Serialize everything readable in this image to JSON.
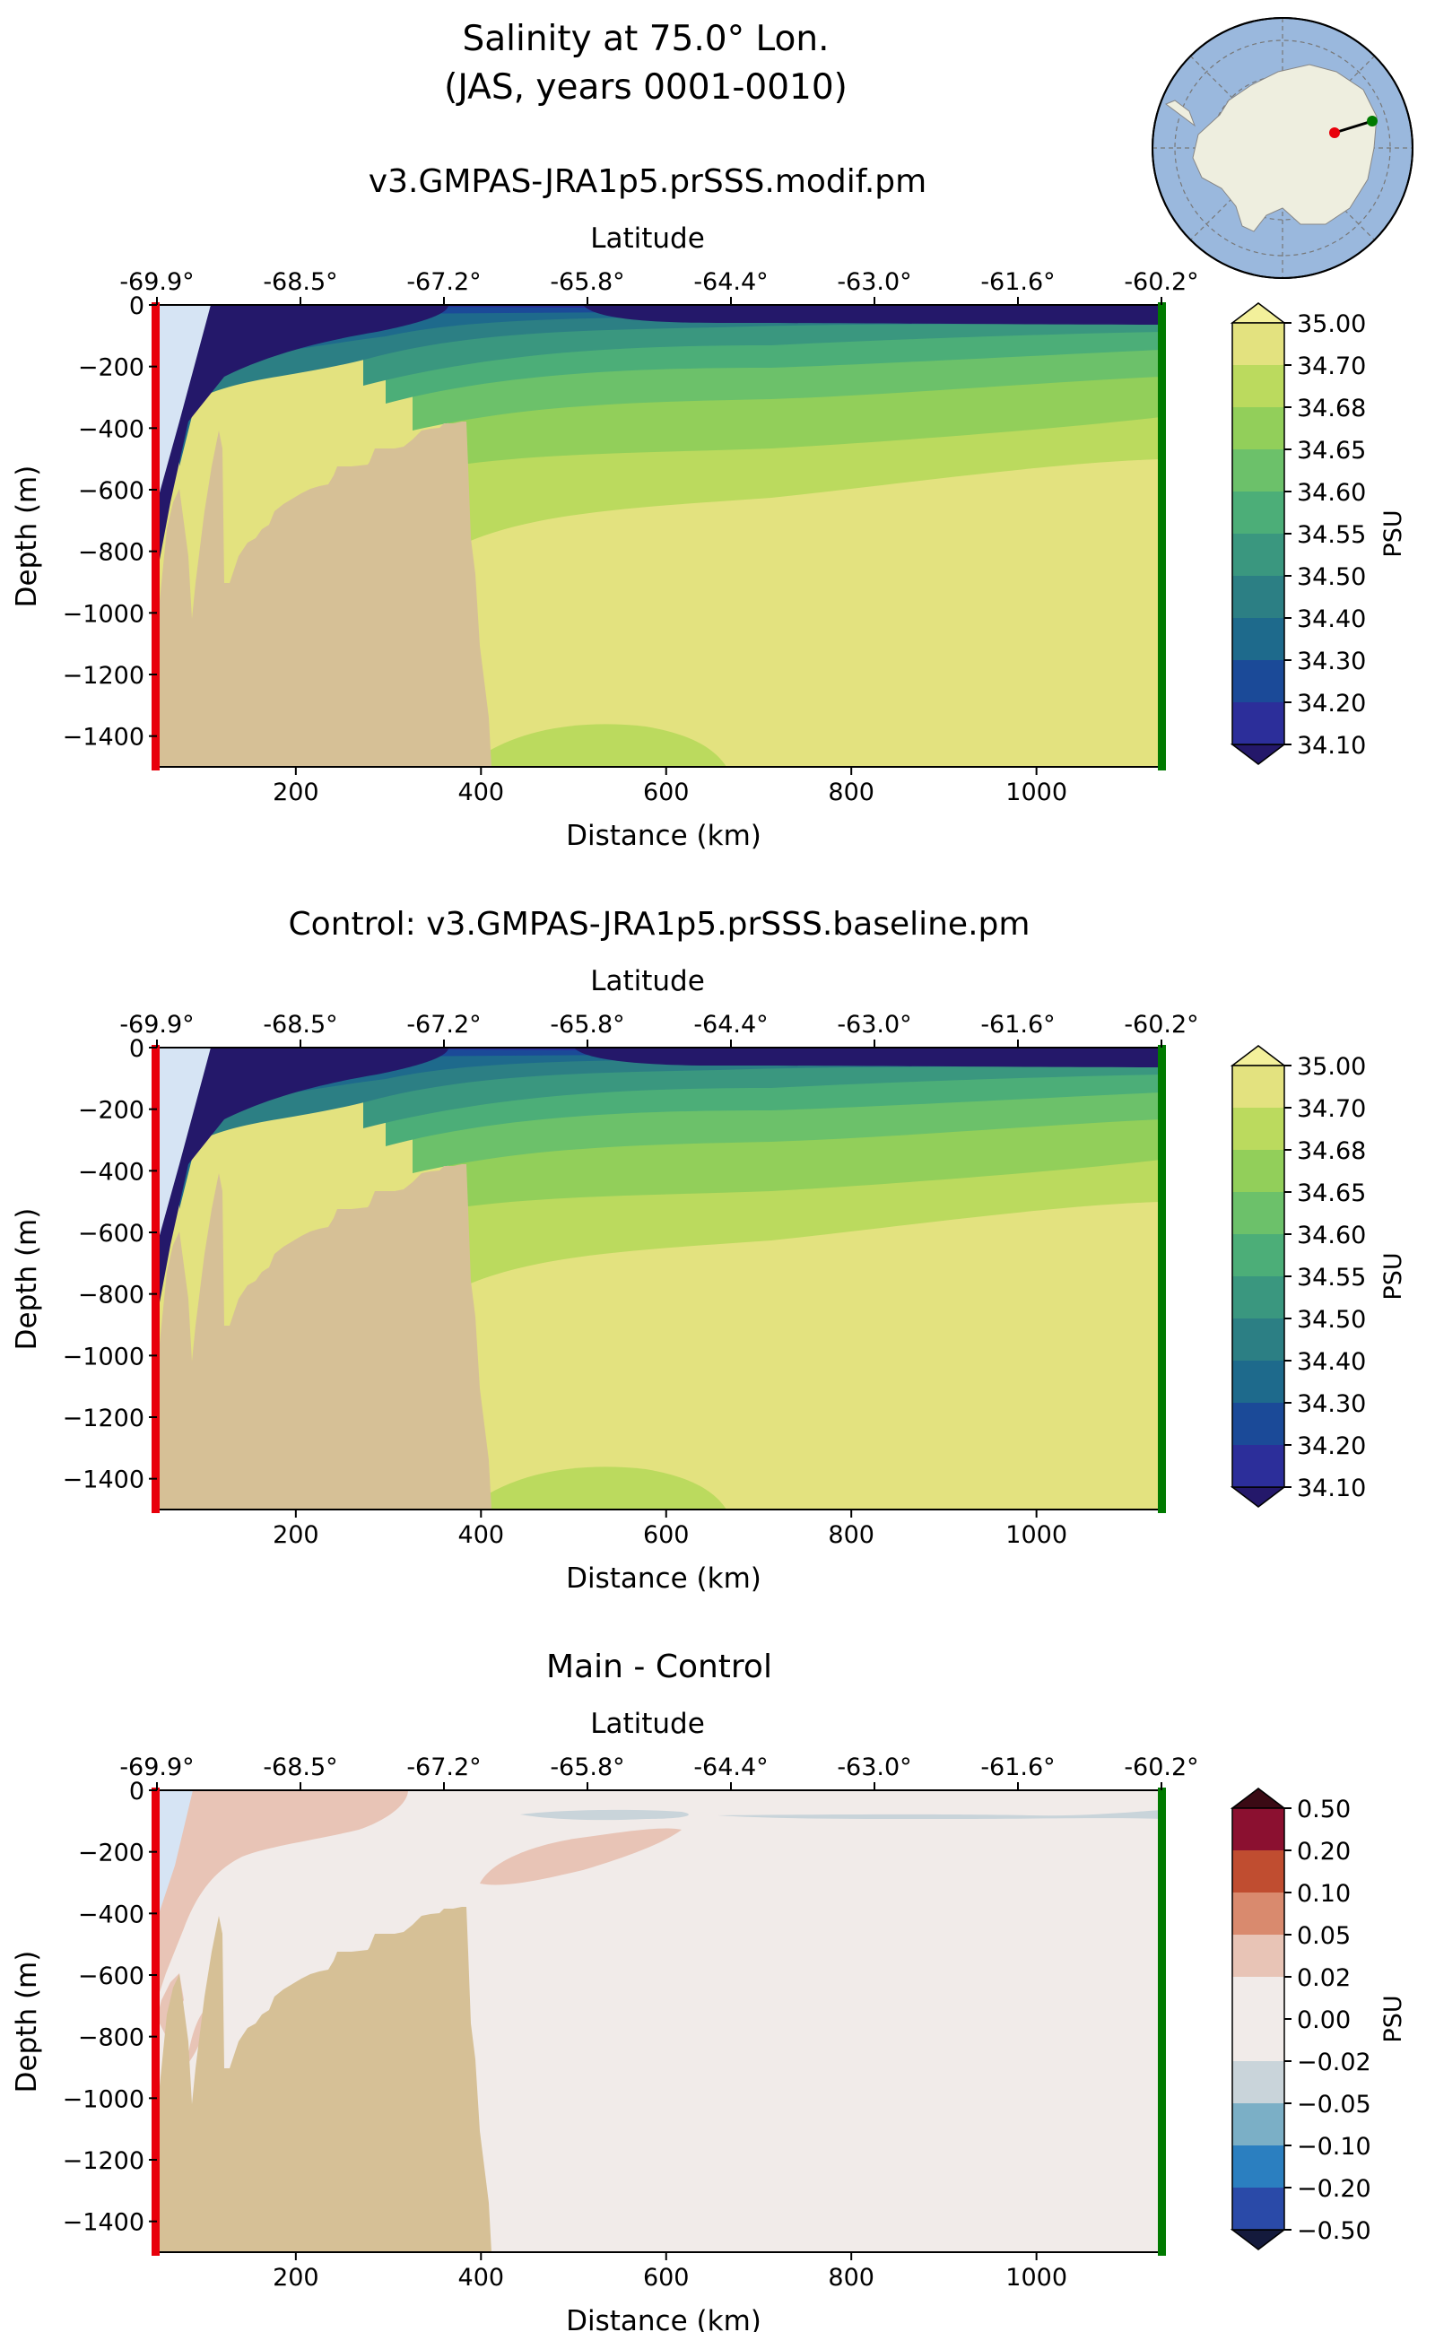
{
  "figure": {
    "title_line1": "Salinity at 75.0° Lon.",
    "title_line2": "(JAS, years 0001-0010)",
    "inset_map": {
      "description_icon": "antarctica-map-icon",
      "ocean_color": "#9ab8dd",
      "land_color": "#eeeedf",
      "start_marker_color": "#e8000b",
      "end_marker_color": "#007a00"
    }
  },
  "chart_data": [
    {
      "type": "heatmap",
      "title": "v3.GMPAS-JRA1p5.prSSS.modif.pm",
      "xlabel": "Distance (km)",
      "ylabel": "Depth (m)",
      "top_axis_label": "Latitude",
      "xlim": [
        50,
        1135
      ],
      "ylim": [
        -1500,
        0
      ],
      "x_ticks": [
        200,
        400,
        600,
        800,
        1000
      ],
      "y_ticks": [
        0,
        -200,
        -400,
        -600,
        -800,
        -1000,
        -1200,
        -1400
      ],
      "y_tick_labels": [
        "0",
        "−200",
        "−400",
        "−600",
        "−800",
        "−1000",
        "−1200",
        "−1400"
      ],
      "lat_ticks": [
        "-69.9°",
        "-68.5°",
        "-67.2°",
        "-65.8°",
        "-64.4°",
        "-63.0°",
        "-61.6°",
        "-60.2°"
      ],
      "lat_tick_distances": [
        50,
        205,
        360,
        515,
        670,
        825,
        980,
        1135
      ],
      "colorbar": {
        "label": "PSU",
        "levels": [
          "35.00",
          "34.70",
          "34.68",
          "34.65",
          "34.60",
          "34.55",
          "34.50",
          "34.40",
          "34.30",
          "34.20",
          "34.10"
        ],
        "colors": [
          "#e3e27f",
          "#bbda5e",
          "#92cf5a",
          "#6cc16a",
          "#4cae78",
          "#3a977f",
          "#2c7f84",
          "#1e6a8c",
          "#1b4a98",
          "#2c2e9a"
        ],
        "over_color": "#f3f09b",
        "under_color": "#24186a"
      },
      "bathymetry_color": "#d6c096",
      "section_start_color": "#e8000b",
      "section_end_color": "#007a00"
    },
    {
      "type": "heatmap",
      "title": "Control: v3.GMPAS-JRA1p5.prSSS.baseline.pm",
      "xlabel": "Distance (km)",
      "ylabel": "Depth (m)",
      "top_axis_label": "Latitude",
      "xlim": [
        50,
        1135
      ],
      "ylim": [
        -1500,
        0
      ],
      "x_ticks": [
        200,
        400,
        600,
        800,
        1000
      ],
      "y_ticks": [
        0,
        -200,
        -400,
        -600,
        -800,
        -1000,
        -1200,
        -1400
      ],
      "y_tick_labels": [
        "0",
        "−200",
        "−400",
        "−600",
        "−800",
        "−1000",
        "−1200",
        "−1400"
      ],
      "lat_ticks": [
        "-69.9°",
        "-68.5°",
        "-67.2°",
        "-65.8°",
        "-64.4°",
        "-63.0°",
        "-61.6°",
        "-60.2°"
      ],
      "lat_tick_distances": [
        50,
        205,
        360,
        515,
        670,
        825,
        980,
        1135
      ],
      "colorbar": {
        "label": "PSU",
        "levels": [
          "35.00",
          "34.70",
          "34.68",
          "34.65",
          "34.60",
          "34.55",
          "34.50",
          "34.40",
          "34.30",
          "34.20",
          "34.10"
        ],
        "colors": [
          "#e3e27f",
          "#bbda5e",
          "#92cf5a",
          "#6cc16a",
          "#4cae78",
          "#3a977f",
          "#2c7f84",
          "#1e6a8c",
          "#1b4a98",
          "#2c2e9a"
        ],
        "over_color": "#f3f09b",
        "under_color": "#24186a"
      },
      "bathymetry_color": "#d6c096",
      "section_start_color": "#e8000b",
      "section_end_color": "#007a00"
    },
    {
      "type": "heatmap",
      "title": "Main - Control",
      "xlabel": "Distance (km)",
      "ylabel": "Depth (m)",
      "top_axis_label": "Latitude",
      "xlim": [
        50,
        1135
      ],
      "ylim": [
        -1500,
        0
      ],
      "x_ticks": [
        200,
        400,
        600,
        800,
        1000
      ],
      "y_ticks": [
        0,
        -200,
        -400,
        -600,
        -800,
        -1000,
        -1200,
        -1400
      ],
      "y_tick_labels": [
        "0",
        "−200",
        "−400",
        "−600",
        "−800",
        "−1000",
        "−1200",
        "−1400"
      ],
      "lat_ticks": [
        "-69.9°",
        "-68.5°",
        "-67.2°",
        "-65.8°",
        "-64.4°",
        "-63.0°",
        "-61.6°",
        "-60.2°"
      ],
      "lat_tick_distances": [
        50,
        205,
        360,
        515,
        670,
        825,
        980,
        1135
      ],
      "colorbar": {
        "label": "PSU",
        "levels": [
          "0.50",
          "0.20",
          "0.10",
          "0.05",
          "0.02",
          "0.00",
          "−0.02",
          "−0.05",
          "−0.10",
          "−0.20",
          "−0.50"
        ],
        "colors": [
          "#8b1030",
          "#c04d30",
          "#d98a6e",
          "#e8c4b6",
          "#f1ebe9",
          "#f1ebe9",
          "#c9d4da",
          "#7bafc6",
          "#2b7fc0",
          "#2a4aa8"
        ],
        "over_color": "#3a0a14",
        "under_color": "#141a3c"
      },
      "bathymetry_color": "#d6c096",
      "section_start_color": "#e8000b",
      "section_end_color": "#007a00"
    }
  ]
}
